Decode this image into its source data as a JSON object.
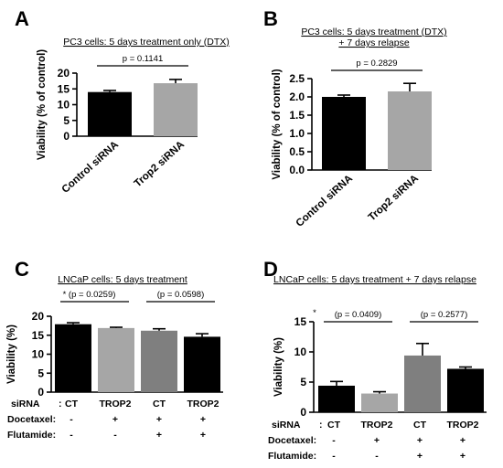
{
  "chart_data": [
    {
      "type": "bar",
      "panel": "A",
      "title": "PC3 cells: 5 days treatment only (DTX)",
      "ylabel": "Viability (% of control)",
      "ylim": [
        0,
        20
      ],
      "yticks": [
        0,
        5,
        10,
        15,
        20
      ],
      "categories": [
        "Control siRNA",
        "Trop2 siRNA"
      ],
      "values": [
        14.0,
        16.8
      ],
      "errors": [
        0.5,
        1.2
      ],
      "colors": [
        "#000000",
        "#a6a6a6"
      ],
      "comparisons": [
        {
          "label": "p = 0.1141",
          "from": 0,
          "to": 1
        }
      ]
    },
    {
      "type": "bar",
      "panel": "B",
      "title_lines": [
        "PC3 cells: 5 days treatment (DTX)",
        "+ 7 days relapse"
      ],
      "ylabel": "Viability (% of control)",
      "ylim": [
        0,
        2.5
      ],
      "yticks": [
        0.0,
        0.5,
        1.0,
        1.5,
        2.0,
        2.5
      ],
      "categories": [
        "Control siRNA",
        "Trop2 siRNA"
      ],
      "values": [
        2.0,
        2.15
      ],
      "errors": [
        0.05,
        0.22
      ],
      "colors": [
        "#000000",
        "#a6a6a6"
      ],
      "comparisons": [
        {
          "label": "p = 0.2829",
          "from": 0,
          "to": 1
        }
      ]
    },
    {
      "type": "bar",
      "panel": "C",
      "title": "LNCaP cells: 5 days treatment",
      "ylabel": "Viability (%)",
      "ylim": [
        0,
        20
      ],
      "yticks": [
        0,
        5,
        10,
        15,
        20
      ],
      "values": [
        17.9,
        16.9,
        16.2,
        14.6
      ],
      "errors": [
        0.4,
        0.2,
        0.5,
        0.8
      ],
      "colors": [
        "#000000",
        "#a6a6a6",
        "#7f7f7f",
        "#000000"
      ],
      "comparisons": [
        {
          "label": "* (p = 0.0259)",
          "from": 0,
          "to": 1
        },
        {
          "label": "(p = 0.0598)",
          "from": 2,
          "to": 3
        }
      ],
      "table": {
        "rows": [
          {
            "label": "siRNA",
            "sep": ":",
            "cells": [
              "CT",
              "TROP2",
              "CT",
              "TROP2"
            ]
          },
          {
            "label": "Docetaxel:",
            "sep": "",
            "cells": [
              "-",
              "+",
              "+",
              "+"
            ]
          },
          {
            "label": "Flutamide:",
            "sep": "",
            "cells": [
              "-",
              "-",
              "+",
              "+"
            ]
          }
        ]
      }
    },
    {
      "type": "bar",
      "panel": "D",
      "title": "LNCaP cells: 5 days treatment + 7 days relapse",
      "ylabel": "Viability (%)",
      "ylim": [
        0,
        15
      ],
      "yticks": [
        0,
        5,
        10,
        15
      ],
      "values": [
        4.4,
        3.1,
        9.4,
        7.2
      ],
      "errors": [
        0.7,
        0.3,
        2.0,
        0.3
      ],
      "colors": [
        "#000000",
        "#a6a6a6",
        "#7f7f7f",
        "#000000"
      ],
      "comparisons": [
        {
          "label": "(p = 0.0409)",
          "star": "*",
          "from": 0,
          "to": 1
        },
        {
          "label": "(p = 0.2577)",
          "from": 2,
          "to": 3
        }
      ],
      "table": {
        "rows": [
          {
            "label": "siRNA",
            "sep": ":",
            "cells": [
              "CT",
              "TROP2",
              "CT",
              "TROP2"
            ]
          },
          {
            "label": "Docetaxel:",
            "sep": "",
            "cells": [
              "-",
              "+",
              "+",
              "+"
            ]
          },
          {
            "label": "Flutamide:",
            "sep": "",
            "cells": [
              "-",
              "-",
              "+",
              "+"
            ]
          }
        ]
      }
    }
  ],
  "panel_letters": [
    "A",
    "B",
    "C",
    "D"
  ]
}
